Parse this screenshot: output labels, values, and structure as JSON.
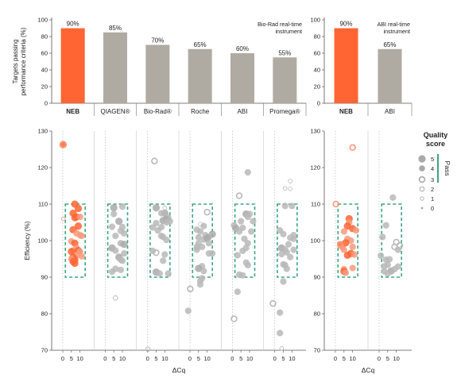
{
  "colors": {
    "neb": "#ff6533",
    "neb_light": "#f79a7c",
    "other": "#afaba3",
    "other_light": "#cccccc",
    "scatter_gray": "#a9a9a9",
    "pass_box": "#3aa57e",
    "grid": "#dadada"
  },
  "chart_data": [
    {
      "type": "bar",
      "panel": "top-left",
      "ylabel": "Targets passing\nperformance criteria (%)",
      "ylim": [
        0,
        100
      ],
      "yticks": [
        0,
        20,
        40,
        60,
        80,
        100
      ],
      "note": "Bio-Rad real-time\ninstrument",
      "categories": [
        "NEB",
        "QIAGEN®",
        "Bio-Rad®",
        "Roche",
        "ABI",
        "Promega®"
      ],
      "values": [
        90,
        85,
        70,
        65,
        60,
        55
      ],
      "value_labels": [
        "90%",
        "85%",
        "70%",
        "65%",
        "60%",
        "55%"
      ],
      "highlight": "NEB"
    },
    {
      "type": "bar",
      "panel": "top-right",
      "ylim": [
        0,
        100
      ],
      "yticks": [
        0,
        20,
        40,
        60,
        80,
        100
      ],
      "note": "ABI real-time\ninstrument",
      "categories": [
        "NEB",
        "ABI"
      ],
      "values": [
        90,
        65
      ],
      "value_labels": [
        "90%",
        "65%"
      ],
      "highlight": "NEB"
    },
    {
      "type": "scatter",
      "panel": "bottom-left",
      "ylabel": "Efficiency (%)",
      "xlabel": "ΔCq",
      "ylim": [
        70,
        130
      ],
      "yticks": [
        70,
        80,
        90,
        100,
        110,
        120,
        130
      ],
      "xlim": [
        0,
        12
      ],
      "xticks": [
        0,
        5,
        10
      ],
      "pass_region": {
        "x": [
          1.5,
          13
        ],
        "y": [
          90,
          110
        ]
      },
      "groups": [
        {
          "name": "NEB",
          "highlight": true,
          "points": [
            [
              0.2,
              126.3,
              5
            ],
            [
              0.2,
              126.3,
              3
            ],
            [
              0.3,
              106,
              1
            ],
            [
              7,
              110,
              5
            ],
            [
              9,
              108.8,
              5
            ],
            [
              6,
              107.5,
              5
            ],
            [
              8,
              106.5,
              5
            ],
            [
              7,
              106.3,
              5
            ],
            [
              10,
              106.5,
              4
            ],
            [
              9,
              104,
              5
            ],
            [
              6,
              103,
              5
            ],
            [
              8,
              102,
              4
            ],
            [
              10,
              101.5,
              4
            ],
            [
              11,
              101.3,
              4
            ],
            [
              5,
              99.8,
              4
            ],
            [
              7,
              99.3,
              5
            ],
            [
              8,
              98,
              4
            ],
            [
              6,
              97.3,
              4
            ],
            [
              9,
              97.3,
              5
            ],
            [
              5,
              97,
              5
            ],
            [
              10,
              97,
              4
            ],
            [
              8,
              96,
              4
            ],
            [
              11,
              95.7,
              4
            ],
            [
              6,
              95.5,
              5
            ],
            [
              7,
              94.8,
              5
            ],
            [
              5,
              95,
              4
            ],
            [
              6,
              94.3,
              5
            ],
            [
              7,
              93.8,
              5
            ]
          ]
        },
        {
          "name": "QIAGEN",
          "points": [
            [
              6,
              84.3,
              2
            ],
            [
              5,
              109,
              5
            ],
            [
              10,
              109.3,
              4
            ],
            [
              5,
              107.3,
              4
            ],
            [
              8,
              105.3,
              5
            ],
            [
              4,
              103.8,
              4
            ],
            [
              10,
              103.7,
              4
            ],
            [
              9,
              102.7,
              4
            ],
            [
              11,
              102,
              4
            ],
            [
              6,
              101.3,
              4
            ],
            [
              9,
              99.3,
              4
            ],
            [
              11,
              99,
              5
            ],
            [
              4,
              98,
              5
            ],
            [
              6,
              97.3,
              4
            ],
            [
              11,
              96.5,
              4
            ],
            [
              8,
              95.5,
              5
            ],
            [
              10,
              94.5,
              4
            ],
            [
              9,
              94.8,
              4
            ],
            [
              6,
              92.3,
              4
            ],
            [
              4,
              91.5,
              4
            ],
            [
              9,
              92,
              4
            ]
          ]
        },
        {
          "name": "Bio-Rad",
          "points": [
            [
              0.2,
              70.3,
              2
            ],
            [
              4,
              121.8,
              3
            ],
            [
              5,
              109,
              5
            ],
            [
              10,
              109,
              1
            ],
            [
              10,
              107.5,
              5
            ],
            [
              8,
              107.5,
              4
            ],
            [
              12,
              106.3,
              4
            ],
            [
              11,
              105.8,
              5
            ],
            [
              9,
              105.5,
              5
            ],
            [
              11,
              105,
              4
            ],
            [
              13,
              105.3,
              4
            ],
            [
              5,
              104.8,
              4
            ],
            [
              8,
              103.7,
              4
            ],
            [
              3,
              103.6,
              4
            ],
            [
              6,
              102.8,
              4
            ],
            [
              8,
              101.3,
              4
            ],
            [
              9,
              101,
              4
            ],
            [
              11,
              100.2,
              4
            ],
            [
              3,
              97.2,
              4
            ],
            [
              5,
              96.7,
              3
            ],
            [
              10,
              96.2,
              4
            ],
            [
              9,
              94.5,
              4
            ],
            [
              5,
              91.4,
              5
            ],
            [
              7,
              91,
              4
            ],
            [
              12,
              91,
              4
            ]
          ]
        },
        {
          "name": "Roche",
          "points": [
            [
              0.2,
              86.8,
              3
            ],
            [
              -1,
              80.8,
              4
            ],
            [
              10,
              107.8,
              3
            ],
            [
              6,
              104.5,
              1
            ],
            [
              8,
              104,
              4
            ],
            [
              4,
              103,
              4
            ],
            [
              6,
              102.5,
              4
            ],
            [
              13,
              101.8,
              5
            ],
            [
              9,
              101.5,
              4
            ],
            [
              5,
              100.9,
              4
            ],
            [
              11,
              101,
              4
            ],
            [
              8,
              100.3,
              4
            ],
            [
              10,
              100.7,
              5
            ],
            [
              5,
              99.3,
              4
            ],
            [
              11,
              99.3,
              4
            ],
            [
              4,
              98.3,
              4
            ],
            [
              7,
              98.3,
              4
            ],
            [
              4,
              97.5,
              4
            ],
            [
              13,
              96.5,
              4
            ],
            [
              11,
              96.5,
              4
            ],
            [
              7,
              93,
              4
            ],
            [
              5,
              92.4,
              5
            ],
            [
              8,
              91.7,
              4
            ],
            [
              7,
              89.7,
              4
            ],
            [
              6,
              89,
              4
            ],
            [
              6,
              88,
              4
            ]
          ]
        },
        {
          "name": "ABI",
          "points": [
            [
              4,
              112.3,
              3
            ],
            [
              8,
              107.3,
              5
            ],
            [
              10,
              107.3,
              4
            ],
            [
              9,
              106.5,
              4
            ],
            [
              5,
              105.3,
              4
            ],
            [
              12,
              105.3,
              4
            ],
            [
              1,
              104.2,
              4
            ],
            [
              2,
              103.4,
              5
            ],
            [
              6,
              103.5,
              4
            ],
            [
              4,
              102.5,
              4
            ],
            [
              11,
              102.5,
              4
            ],
            [
              7,
              100.5,
              4
            ],
            [
              9,
              99.3,
              4
            ],
            [
              8,
              98,
              4
            ],
            [
              6,
              97.2,
              4
            ],
            [
              3,
              96,
              4
            ],
            [
              8,
              94,
              4
            ],
            [
              9,
              93.3,
              4
            ],
            [
              4,
              90.7,
              4
            ],
            [
              6,
              90.5,
              4
            ],
            [
              3,
              86,
              4
            ],
            [
              1,
              78.6,
              3
            ],
            [
              9,
              118.7,
              4
            ]
          ]
        },
        {
          "name": "Promega",
          "points": [
            [
              -1,
              82.8,
              3
            ],
            [
              9,
              116.3,
              1
            ],
            [
              9,
              114.2,
              1
            ],
            [
              6,
              114.3,
              1
            ],
            [
              3,
              102.8,
              4
            ],
            [
              5,
              101.8,
              4
            ],
            [
              11,
              101.5,
              4
            ],
            [
              9,
              100.8,
              4
            ],
            [
              11,
              100.5,
              4
            ],
            [
              8,
              99,
              4
            ],
            [
              4,
              98,
              5
            ],
            [
              6,
              97.6,
              4
            ],
            [
              11,
              97.5,
              4
            ],
            [
              7,
              96.8,
              4
            ],
            [
              4,
              96.3,
              4
            ],
            [
              9,
              95.5,
              4
            ],
            [
              5,
              93.5,
              4
            ],
            [
              6,
              93.3,
              4
            ],
            [
              7,
              92.3,
              4
            ],
            [
              5,
              88.8,
              4
            ],
            [
              3,
              80.3,
              4
            ],
            [
              3,
              74.7,
              4
            ],
            [
              4,
              70.5,
              1
            ],
            [
              10,
              109.5,
              4
            ],
            [
              6,
              109.5,
              4
            ]
          ]
        }
      ]
    },
    {
      "type": "scatter",
      "panel": "bottom-right",
      "xlabel": "ΔCq",
      "ylim": [
        70,
        130
      ],
      "yticks": [
        70,
        80,
        90,
        100,
        110,
        120,
        130
      ],
      "xlim": [
        0,
        12
      ],
      "xticks": [
        0,
        5,
        10
      ],
      "pass_region": {
        "x": [
          1.5,
          13
        ],
        "y": [
          90,
          110
        ]
      },
      "groups": [
        {
          "name": "NEB",
          "highlight": true,
          "points": [
            [
              0.3,
              110,
              3
            ],
            [
              10,
              125.5,
              3
            ],
            [
              8,
              106,
              5
            ],
            [
              8,
              105,
              4
            ],
            [
              7,
              104,
              5
            ],
            [
              10,
              103.3,
              5
            ],
            [
              5,
              102.5,
              4
            ],
            [
              12,
              102.8,
              4
            ],
            [
              7,
              100.5,
              4
            ],
            [
              3,
              98.9,
              5
            ],
            [
              4,
              98.2,
              4
            ],
            [
              9,
              100,
              4
            ],
            [
              6,
              99.4,
              5
            ],
            [
              3,
              98.8,
              3
            ],
            [
              10,
              98.3,
              4
            ],
            [
              9,
              96.5,
              5
            ],
            [
              7,
              96,
              5
            ],
            [
              11,
              96.2,
              4
            ],
            [
              5,
              97.5,
              4
            ],
            [
              10,
              92.5,
              4
            ],
            [
              5,
              92.2,
              4
            ],
            [
              5,
              91.6,
              5
            ],
            [
              6,
              91.2,
              4
            ]
          ]
        },
        {
          "name": "ABI",
          "points": [
            [
              8,
              111.8,
              4
            ],
            [
              4,
              104.2,
              4
            ],
            [
              2,
              101,
              4
            ],
            [
              10,
              99.6,
              3
            ],
            [
              12,
              98.7,
              3
            ],
            [
              9,
              98.3,
              3
            ],
            [
              1,
              95.9,
              4
            ],
            [
              11,
              97.5,
              4
            ],
            [
              4,
              94.8,
              4
            ],
            [
              6,
              94.9,
              4
            ],
            [
              3,
              93,
              4
            ],
            [
              5,
              93.4,
              4
            ],
            [
              3,
              91.6,
              4
            ],
            [
              7,
              91.7,
              5
            ],
            [
              9,
              92.2,
              4
            ],
            [
              11,
              92.9,
              4
            ],
            [
              5,
              91,
              4
            ]
          ]
        }
      ]
    }
  ],
  "legend": {
    "title": "Quality\nscore",
    "entries": [
      {
        "score": 5,
        "label": "5"
      },
      {
        "score": 4,
        "label": "4"
      },
      {
        "score": 3,
        "label": "3"
      },
      {
        "score": 2,
        "label": "2"
      },
      {
        "score": 1,
        "label": "1"
      },
      {
        "score": 0,
        "label": "0"
      }
    ],
    "pass_label": "Pass"
  }
}
